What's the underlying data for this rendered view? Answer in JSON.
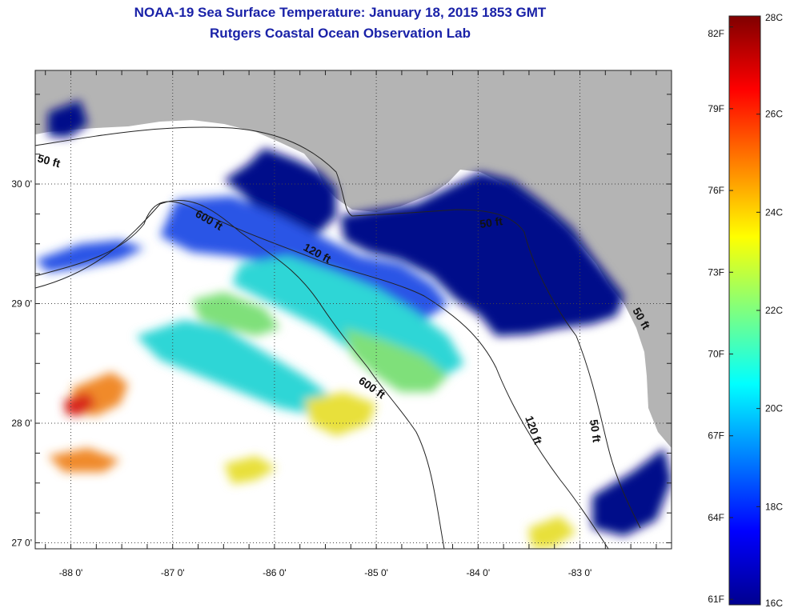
{
  "title": {
    "line1": "NOAA-19 Sea Surface Temperature:  January 18, 2015 1853 GMT",
    "line2": "Rutgers Coastal Ocean Observation Lab"
  },
  "map": {
    "lat_ticks": [
      "30 0'",
      "29 0'",
      "28 0'",
      "27 0'"
    ],
    "lon_ticks": [
      "-88 0'",
      "-87 0'",
      "-86 0'",
      "-85 0'",
      "-84 0'",
      "-83 0'"
    ],
    "lon_min": -88.35,
    "lon_max": -82.1,
    "lat_min": 26.95,
    "lat_max": 30.95,
    "contour_labels": [
      "50 ft",
      "600 ft",
      "120 ft",
      "50 ft",
      "600 ft",
      "120 ft",
      "50 ft",
      "50 ft"
    ],
    "colors": {
      "land": "#b4b4b4",
      "nodata": "#ffffff",
      "cold": "#000c8a",
      "mid_blue": "#2a55e6",
      "cyan": "#2fd6d6",
      "green": "#7fe07a",
      "yellow": "#e8e03a",
      "orange": "#f08a2a",
      "red": "#d8281a"
    }
  },
  "colorbar": {
    "celsius": [
      "28C",
      "26C",
      "24C",
      "22C",
      "20C",
      "18C",
      "16C"
    ],
    "fahrenheit": [
      "82F",
      "79F",
      "76F",
      "73F",
      "70F",
      "67F",
      "64F",
      "61F"
    ],
    "min_c": 16,
    "max_c": 28
  }
}
